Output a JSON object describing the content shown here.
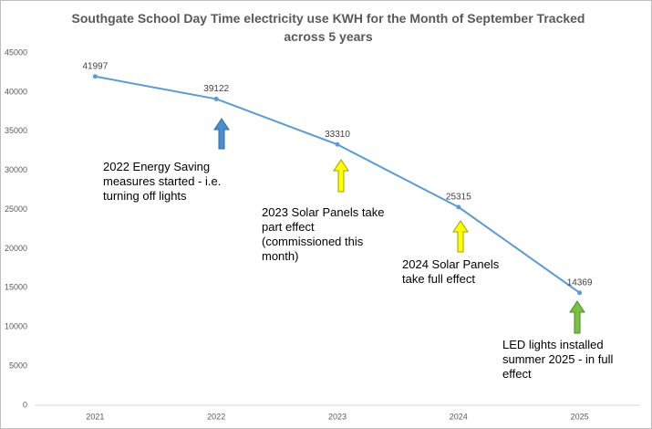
{
  "chart_data": {
    "type": "line",
    "title": "Southgate School Day Time electricity use KWH for the Month of September Tracked across 5 years",
    "categories": [
      "2021",
      "2022",
      "2023",
      "2024",
      "2025"
    ],
    "values": [
      41997,
      39122,
      33310,
      25315,
      14369
    ],
    "color": "#5b9bd5",
    "ylim": [
      0,
      45000
    ],
    "yticks": [
      0,
      5000,
      10000,
      15000,
      20000,
      25000,
      30000,
      35000,
      40000,
      45000
    ],
    "grid": false,
    "annotations": [
      "2022 Energy Saving measures started - i.e. turning off lights",
      "2023 Solar Panels take part effect (commissioned this month)",
      "2024 Solar Panels take full effect",
      "LED lights installed summer 2025 - in full effect"
    ]
  }
}
